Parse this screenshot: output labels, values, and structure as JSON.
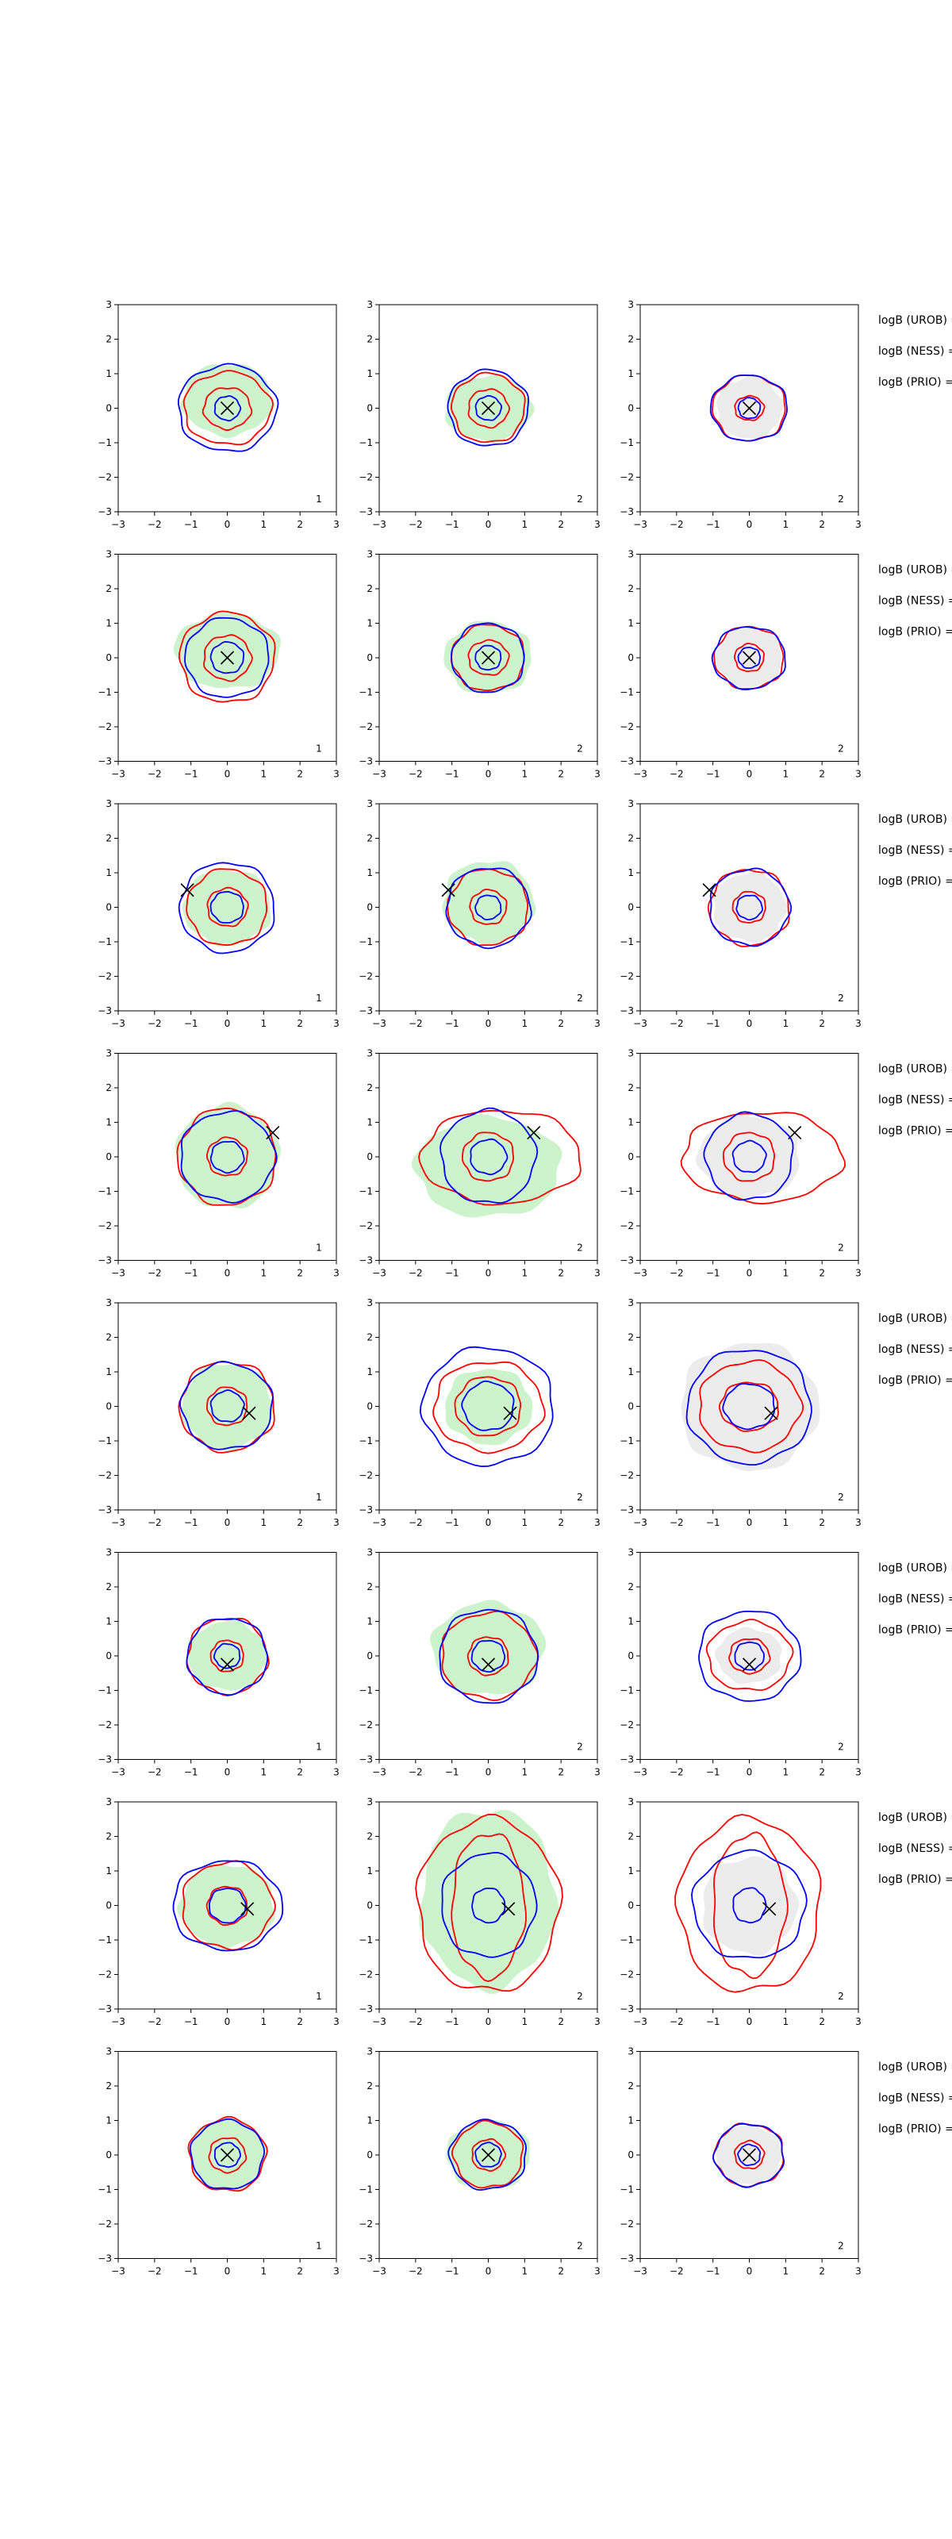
{
  "colors": {
    "blue": "#0000ff",
    "red": "#ff0000",
    "green_fill": "#cdf3cd",
    "grey_fill": "#ececec",
    "marker": "#000000"
  },
  "axis": {
    "xlim": [
      -3,
      3
    ],
    "ylim": [
      -3,
      3
    ],
    "ticks": [
      "−3",
      "−2",
      "−1",
      "0",
      "1",
      "2",
      "3"
    ]
  },
  "side_labels": [
    "logB (UROB) =",
    "logB (NESS) =",
    "logB (PRIO) ="
  ],
  "chart_data": {
    "type": "contour-grid",
    "rows": [
      {
        "marker": [
          0.0,
          0.0
        ],
        "panels": [
          {
            "label": "1",
            "fill": "green",
            "green": [
              0.25,
              1.25,
              1.05
            ],
            "red": [
              [
                0.65,
                0.6
              ],
              [
                1.2,
                1.05
              ]
            ],
            "blue": [
              [
                0.35,
                0.35
              ],
              [
                1.35,
                1.25
              ]
            ]
          },
          {
            "label": "2",
            "fill": "green",
            "green": [
              0.0,
              1.2,
              0.95
            ],
            "red": [
              [
                0.55,
                0.55
              ],
              [
                1.0,
                1.0
              ]
            ],
            "blue": [
              [
                0.35,
                0.35
              ],
              [
                1.1,
                1.1
              ]
            ]
          },
          {
            "label": "2",
            "fill": "grey",
            "green": [
              0.0,
              0.9,
              0.9
            ],
            "red": [
              [
                0.4,
                0.35
              ],
              [
                1.0,
                0.95
              ]
            ],
            "blue": [
              [
                0.3,
                0.3
              ],
              [
                1.05,
                0.95
              ]
            ]
          }
        ]
      },
      {
        "marker": [
          0.0,
          0.0
        ],
        "panels": [
          {
            "label": "1",
            "fill": "green",
            "green": [
              0.2,
              1.45,
              1.1
            ],
            "red": [
              [
                0.65,
                0.65
              ],
              [
                1.3,
                1.3
              ]
            ],
            "blue": [
              [
                0.45,
                0.45
              ],
              [
                1.15,
                1.15
              ]
            ]
          },
          {
            "label": "2",
            "fill": "green",
            "green": [
              0.0,
              1.2,
              1.05
            ],
            "red": [
              [
                0.55,
                0.5
              ],
              [
                1.0,
                0.95
              ]
            ],
            "blue": [
              [
                0.35,
                0.35
              ],
              [
                1.0,
                1.0
              ]
            ]
          },
          {
            "label": "2",
            "fill": "grey",
            "green": [
              0.0,
              0.9,
              0.85
            ],
            "red": [
              [
                0.4,
                0.4
              ],
              [
                0.95,
                0.9
              ]
            ],
            "blue": [
              [
                0.3,
                0.3
              ],
              [
                1.0,
                0.9
              ]
            ]
          }
        ]
      },
      {
        "marker": [
          -1.1,
          0.5
        ],
        "panels": [
          {
            "label": "1",
            "fill": "green",
            "green": [
              0.0,
              1.2,
              1.1
            ],
            "red": [
              [
                0.55,
                0.55
              ],
              [
                1.1,
                1.1
              ]
            ],
            "blue": [
              [
                0.45,
                0.45
              ],
              [
                1.3,
                1.3
              ]
            ]
          },
          {
            "label": "2",
            "fill": "green",
            "green": [
              0.15,
              1.25,
              1.2
            ],
            "red": [
              [
                0.5,
                0.5
              ],
              [
                1.1,
                1.1
              ]
            ],
            "blue": [
              [
                0.35,
                0.35
              ],
              [
                1.15,
                1.15
              ]
            ]
          },
          {
            "label": "2",
            "fill": "grey",
            "green": [
              0.0,
              1.0,
              1.0
            ],
            "red": [
              [
                0.45,
                0.45
              ],
              [
                1.1,
                1.1
              ]
            ],
            "blue": [
              [
                0.35,
                0.35
              ],
              [
                1.1,
                1.1
              ]
            ]
          }
        ]
      },
      {
        "marker": [
          1.25,
          0.7
        ],
        "panels": [
          {
            "label": "1",
            "fill": "green",
            "green": [
              0.0,
              1.4,
              1.5
            ],
            "red": [
              [
                0.55,
                0.55
              ],
              [
                1.35,
                1.4
              ]
            ],
            "blue": [
              [
                0.45,
                0.45
              ],
              [
                1.3,
                1.3
              ]
            ]
          },
          {
            "label": "2",
            "fill": "green",
            "green": [
              -0.3,
              2.0,
              1.45
            ],
            "red": [
              [
                0.7,
                0.7
              ],
              [
                2.2,
                1.35
              ]
            ],
            "blue": [
              [
                0.5,
                0.5
              ],
              [
                1.3,
                1.35
              ]
            ]
          },
          {
            "label": "2",
            "fill": "grey",
            "green": [
              0.0,
              1.4,
              1.2
            ],
            "red": [
              [
                0.7,
                0.7
              ],
              [
                2.2,
                1.3
              ]
            ],
            "blue": [
              [
                0.45,
                0.45
              ],
              [
                1.2,
                1.25
              ]
            ]
          }
        ]
      },
      {
        "marker": [
          0.6,
          -0.2
        ],
        "panels": [
          {
            "label": "1",
            "fill": "green",
            "green": [
              0.0,
              1.25,
              1.25
            ],
            "red": [
              [
                0.55,
                0.55
              ],
              [
                1.3,
                1.3
              ]
            ],
            "blue": [
              [
                0.45,
                0.45
              ],
              [
                1.25,
                1.25
              ]
            ]
          },
          {
            "label": "2",
            "fill": "green",
            "green": [
              0.0,
              1.2,
              1.1
            ],
            "red": [
              [
                0.9,
                0.85
              ],
              [
                1.5,
                1.3
              ]
            ],
            "blue": [
              [
                0.7,
                0.7
              ],
              [
                1.8,
                1.7
              ]
            ]
          },
          {
            "label": "2",
            "fill": "grey",
            "green": [
              0.0,
              1.9,
              1.85
            ],
            "red": [
              [
                0.8,
                0.7
              ],
              [
                1.4,
                1.3
              ]
            ],
            "blue": [
              [
                0.7,
                0.65
              ],
              [
                1.7,
                1.65
              ]
            ]
          }
        ]
      },
      {
        "marker": [
          0.0,
          -0.25
        ],
        "panels": [
          {
            "label": "1",
            "fill": "green",
            "green": [
              0.0,
              1.1,
              1.0
            ],
            "red": [
              [
                0.45,
                0.45
              ],
              [
                1.1,
                1.1
              ]
            ],
            "blue": [
              [
                0.35,
                0.35
              ],
              [
                1.1,
                1.1
              ]
            ]
          },
          {
            "label": "2",
            "fill": "green",
            "green": [
              0.2,
              1.55,
              1.35
            ],
            "red": [
              [
                0.55,
                0.55
              ],
              [
                1.3,
                1.25
              ]
            ],
            "blue": [
              [
                0.45,
                0.45
              ],
              [
                1.35,
                1.35
              ]
            ]
          },
          {
            "label": "2",
            "fill": "grey",
            "green": [
              0.0,
              0.9,
              0.8
            ],
            "red": [
              [
                0.55,
                0.5
              ],
              [
                1.15,
                1.0
              ]
            ],
            "blue": [
              [
                0.4,
                0.4
              ],
              [
                1.4,
                1.3
              ]
            ]
          }
        ]
      },
      {
        "marker": [
          0.55,
          -0.1
        ],
        "panels": [
          {
            "label": "1",
            "fill": "green",
            "green": [
              0.0,
              1.3,
              1.2
            ],
            "red": [
              [
                0.55,
                0.55
              ],
              [
                1.25,
                1.25
              ]
            ],
            "blue": [
              [
                0.5,
                0.5
              ],
              [
                1.5,
                1.3
              ]
            ]
          },
          {
            "label": "2",
            "fill": "green",
            "green": [
              0.2,
              1.85,
              2.6
            ],
            "red": [
              [
                1.0,
                2.1
              ],
              [
                1.95,
                2.5
              ]
            ],
            "blue": [
              [
                0.45,
                0.5
              ],
              [
                1.3,
                1.5
              ]
            ]
          },
          {
            "label": "2",
            "fill": "grey",
            "green": [
              0.0,
              1.3,
              1.4
            ],
            "red": [
              [
                1.0,
                2.05
              ],
              [
                1.95,
                2.5
              ]
            ],
            "blue": [
              [
                0.45,
                0.5
              ],
              [
                1.55,
                1.55
              ]
            ]
          }
        ]
      },
      {
        "marker": [
          0.0,
          0.0
        ],
        "panels": [
          {
            "label": "1",
            "fill": "green",
            "green": [
              0.0,
              1.05,
              1.05
            ],
            "red": [
              [
                0.5,
                0.5
              ],
              [
                1.05,
                1.05
              ]
            ],
            "blue": [
              [
                0.35,
                0.35
              ],
              [
                1.0,
                1.0
              ]
            ]
          },
          {
            "label": "2",
            "fill": "green",
            "green": [
              0.0,
              1.15,
              1.0
            ],
            "red": [
              [
                0.45,
                0.45
              ],
              [
                0.95,
                0.95
              ]
            ],
            "blue": [
              [
                0.35,
                0.35
              ],
              [
                1.05,
                1.0
              ]
            ]
          },
          {
            "label": "2",
            "fill": "grey",
            "green": [
              0.0,
              0.9,
              0.85
            ],
            "red": [
              [
                0.4,
                0.4
              ],
              [
                0.95,
                0.9
              ]
            ],
            "blue": [
              [
                0.3,
                0.3
              ],
              [
                0.95,
                0.9
              ]
            ]
          }
        ]
      }
    ]
  }
}
